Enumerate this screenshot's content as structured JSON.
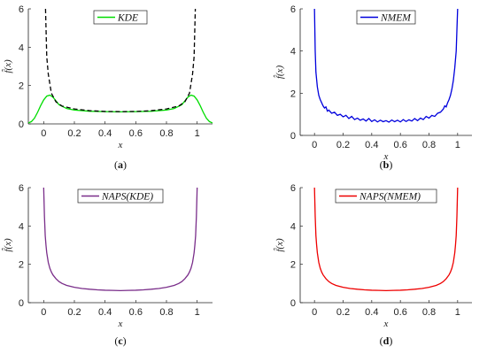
{
  "chart_data": [
    {
      "type": "line",
      "panel_label": "(a)",
      "xlabel": "x",
      "ylabel": "f̂(x)",
      "xlim": [
        -0.1,
        1.1
      ],
      "ylim": [
        0,
        6
      ],
      "xticks": [
        "0",
        "0.2",
        "0.4",
        "0.6",
        "0.8",
        "1"
      ],
      "yticks": [
        "0",
        "2",
        "4",
        "6"
      ],
      "legend": "top-center",
      "series": [
        {
          "name": "KDE",
          "color": "#00dd00",
          "style": "solid",
          "x": [
            -0.1,
            -0.08,
            -0.06,
            -0.04,
            -0.02,
            0.0,
            0.02,
            0.04,
            0.06,
            0.08,
            0.1,
            0.15,
            0.2,
            0.3,
            0.4,
            0.5,
            0.6,
            0.7,
            0.8,
            0.85,
            0.9,
            0.92,
            0.94,
            0.96,
            0.98,
            1.0,
            1.02,
            1.04,
            1.06,
            1.08,
            1.1
          ],
          "y": [
            0.05,
            0.12,
            0.3,
            0.6,
            0.95,
            1.25,
            1.45,
            1.5,
            1.4,
            1.2,
            1.0,
            0.8,
            0.72,
            0.66,
            0.64,
            0.63,
            0.64,
            0.66,
            0.72,
            0.8,
            1.0,
            1.2,
            1.4,
            1.5,
            1.45,
            1.25,
            0.95,
            0.6,
            0.3,
            0.12,
            0.05
          ]
        },
        {
          "color": "#000000",
          "style": "dashed",
          "x": [
            0.012,
            0.02,
            0.03,
            0.05,
            0.08,
            0.12,
            0.2,
            0.3,
            0.4,
            0.5,
            0.6,
            0.7,
            0.8,
            0.88,
            0.92,
            0.95,
            0.97,
            0.98,
            0.988
          ],
          "y": [
            6.0,
            3.5,
            2.6,
            1.6,
            1.15,
            0.93,
            0.78,
            0.69,
            0.65,
            0.64,
            0.65,
            0.69,
            0.78,
            0.93,
            1.15,
            1.6,
            2.6,
            3.5,
            6.0
          ]
        }
      ]
    },
    {
      "type": "line",
      "panel_label": "(b)",
      "xlabel": "x",
      "ylabel": "f̂(x)",
      "xlim": [
        -0.1,
        1.1
      ],
      "ylim": [
        0,
        6
      ],
      "xticks": [
        "0",
        "0.2",
        "0.4",
        "0.6",
        "0.8",
        "1"
      ],
      "yticks": [
        "0",
        "2",
        "4",
        "6"
      ],
      "legend": "top-center",
      "series": [
        {
          "name": "NMEM",
          "color": "#0000dd",
          "style": "solid",
          "x": [
            0.0,
            0.005,
            0.01,
            0.02,
            0.03,
            0.04,
            0.05,
            0.06,
            0.07,
            0.08,
            0.09,
            0.1,
            0.12,
            0.14,
            0.16,
            0.18,
            0.2,
            0.22,
            0.24,
            0.26,
            0.28,
            0.3,
            0.32,
            0.34,
            0.36,
            0.38,
            0.4,
            0.42,
            0.44,
            0.46,
            0.48,
            0.5,
            0.52,
            0.54,
            0.56,
            0.58,
            0.6,
            0.62,
            0.64,
            0.66,
            0.68,
            0.7,
            0.72,
            0.74,
            0.76,
            0.78,
            0.8,
            0.82,
            0.84,
            0.86,
            0.88,
            0.9,
            0.91,
            0.92,
            0.93,
            0.94,
            0.95,
            0.96,
            0.97,
            0.98,
            0.99,
            0.995,
            1.0
          ],
          "y": [
            6.0,
            4.0,
            3.0,
            2.3,
            1.9,
            1.7,
            1.55,
            1.4,
            1.3,
            1.35,
            1.15,
            1.2,
            1.05,
            1.1,
            0.95,
            1.0,
            0.88,
            0.95,
            0.8,
            0.9,
            0.75,
            0.82,
            0.72,
            0.78,
            0.68,
            0.8,
            0.66,
            0.74,
            0.64,
            0.72,
            0.65,
            0.7,
            0.63,
            0.73,
            0.65,
            0.72,
            0.64,
            0.75,
            0.66,
            0.74,
            0.68,
            0.8,
            0.7,
            0.82,
            0.75,
            0.9,
            0.82,
            0.95,
            0.9,
            1.05,
            1.1,
            1.25,
            1.4,
            1.35,
            1.55,
            1.7,
            1.9,
            2.2,
            2.6,
            3.2,
            4.0,
            5.0,
            6.0
          ]
        }
      ]
    },
    {
      "type": "line",
      "panel_label": "(c)",
      "xlabel": "x",
      "ylabel": "f̂(x)",
      "xlim": [
        -0.1,
        1.1
      ],
      "ylim": [
        0,
        6
      ],
      "xticks": [
        "0",
        "0.2",
        "0.4",
        "0.6",
        "0.8",
        "1"
      ],
      "yticks": [
        "0",
        "2",
        "4",
        "6"
      ],
      "legend": "top-center",
      "series": [
        {
          "name": "NAPS(KDE)",
          "color": "#7a2e8a",
          "style": "solid",
          "x": [
            0.0,
            0.005,
            0.01,
            0.015,
            0.02,
            0.03,
            0.04,
            0.05,
            0.06,
            0.08,
            0.1,
            0.12,
            0.15,
            0.2,
            0.25,
            0.3,
            0.35,
            0.4,
            0.45,
            0.5,
            0.55,
            0.6,
            0.65,
            0.7,
            0.75,
            0.8,
            0.85,
            0.88,
            0.9,
            0.92,
            0.94,
            0.95,
            0.96,
            0.97,
            0.98,
            0.985,
            0.99,
            0.995,
            1.0
          ],
          "y": [
            6.0,
            4.5,
            3.5,
            3.0,
            2.6,
            2.1,
            1.8,
            1.6,
            1.45,
            1.25,
            1.1,
            1.0,
            0.9,
            0.8,
            0.74,
            0.7,
            0.67,
            0.65,
            0.64,
            0.63,
            0.64,
            0.65,
            0.67,
            0.7,
            0.74,
            0.8,
            0.9,
            1.0,
            1.1,
            1.25,
            1.45,
            1.6,
            1.8,
            2.1,
            2.6,
            3.0,
            3.5,
            4.5,
            6.0
          ]
        }
      ]
    },
    {
      "type": "line",
      "panel_label": "(d)",
      "xlabel": "x",
      "ylabel": "f̂(x)",
      "xlim": [
        -0.1,
        1.1
      ],
      "ylim": [
        0,
        6
      ],
      "xticks": [
        "0",
        "0.2",
        "0.4",
        "0.6",
        "0.8",
        "1"
      ],
      "yticks": [
        "0",
        "2",
        "4",
        "6"
      ],
      "legend": "top-center",
      "series": [
        {
          "name": "NAPS(NMEM)",
          "color": "#ee0000",
          "style": "solid",
          "x": [
            0.0,
            0.005,
            0.01,
            0.015,
            0.02,
            0.03,
            0.04,
            0.05,
            0.06,
            0.08,
            0.1,
            0.12,
            0.15,
            0.2,
            0.25,
            0.3,
            0.35,
            0.4,
            0.45,
            0.5,
            0.55,
            0.6,
            0.65,
            0.7,
            0.75,
            0.8,
            0.85,
            0.88,
            0.9,
            0.92,
            0.94,
            0.95,
            0.96,
            0.97,
            0.98,
            0.985,
            0.99,
            0.995,
            1.0
          ],
          "y": [
            6.0,
            4.5,
            3.5,
            3.0,
            2.6,
            2.1,
            1.8,
            1.6,
            1.45,
            1.25,
            1.1,
            1.0,
            0.9,
            0.8,
            0.74,
            0.7,
            0.67,
            0.65,
            0.64,
            0.63,
            0.64,
            0.65,
            0.67,
            0.7,
            0.74,
            0.8,
            0.9,
            1.0,
            1.1,
            1.25,
            1.45,
            1.6,
            1.8,
            2.1,
            2.6,
            3.0,
            3.5,
            4.5,
            6.0
          ]
        }
      ]
    }
  ]
}
